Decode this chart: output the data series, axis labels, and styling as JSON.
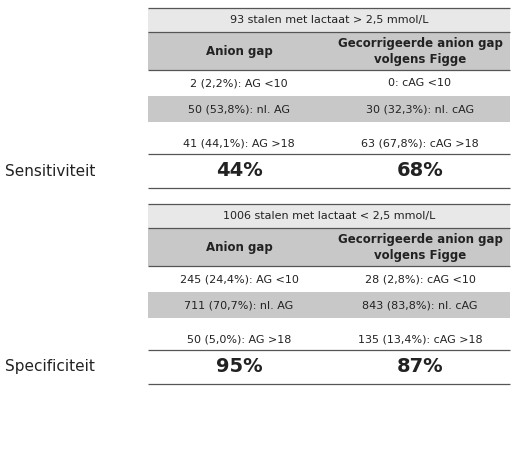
{
  "bg_color": "#ffffff",
  "shaded": "#c8c8c8",
  "title_bg": "#e8e8e8",
  "header_title1": "93 stalen met lactaat > 2,5 mmol/L",
  "header_col1": "Anion gap",
  "header_col2": "Gecorrigeerde anion gap\nvolgens Figge",
  "row1_col1": "2 (2,2%): AG <10",
  "row1_col2": "0: cAG <10",
  "row2_col1": "50 (53,8%): nl. AG",
  "row2_col2": "30 (32,3%): nl. cAG",
  "row3_col1": "41 (44,1%): AG >18",
  "row3_col2": "63 (67,8%): cAG >18",
  "sens_label": "Sensitiviteit",
  "sens_val1": "44%",
  "sens_val2": "68%",
  "header_title2": "1006 stalen met lactaat < 2,5 mmol/L",
  "header_col1b": "Anion gap",
  "header_col2b": "Gecorrigeerde anion gap\nvolgens Figge",
  "row4_col1": "245 (24,4%): AG <10",
  "row4_col2": "28 (2,8%): cAG <10",
  "row5_col1": "711 (70,7%): nl. AG",
  "row5_col2": "843 (83,8%): nl. cAG",
  "row6_col1": "50 (5,0%): AG >18",
  "row6_col2": "135 (13,4%): cAG >18",
  "spec_label": "Specificiteit",
  "spec_val1": "95%",
  "spec_val2": "87%"
}
